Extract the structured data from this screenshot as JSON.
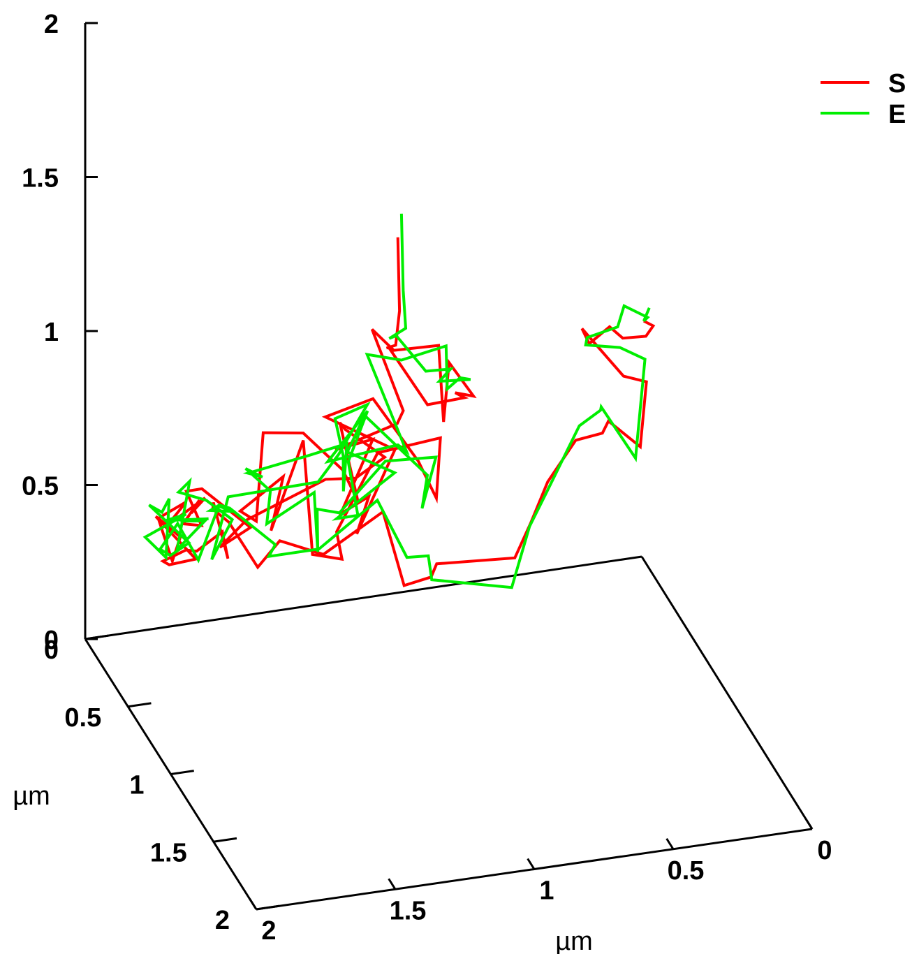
{
  "chart_data": {
    "type": "line",
    "title": "",
    "xlabel": "µm",
    "ylabel": "µm",
    "zlabel": "",
    "xlim": [
      0,
      2
    ],
    "ylim": [
      0,
      2
    ],
    "zlim": [
      0,
      2
    ],
    "x_ticks": [
      "0",
      "0.5",
      "1",
      "1.5",
      "2"
    ],
    "y_ticks": [
      "0",
      "0.5",
      "1",
      "1.5",
      "2"
    ],
    "z_ticks": [
      "0",
      "0.5",
      "1",
      "1.5",
      "2"
    ],
    "legend_position": "top-right",
    "grid": false,
    "series": [
      {
        "name": "S",
        "color": "#ff0000",
        "points": [
          [
            0.95,
            0.24,
            1.27
          ],
          [
            0.95,
            0.26,
            1.04
          ],
          [
            0.97,
            0.28,
            0.94
          ],
          [
            1.0,
            0.27,
            0.93
          ],
          [
            1.01,
            0.33,
            0.96
          ],
          [
            0.88,
            0.36,
            0.77
          ],
          [
            0.75,
            0.37,
            0.78
          ],
          [
            0.79,
            0.39,
            0.81
          ],
          [
            0.73,
            0.41,
            0.8
          ],
          [
            0.83,
            0.45,
            0.94
          ],
          [
            0.85,
            0.45,
            0.75
          ],
          [
            0.88,
            0.49,
            1.02
          ],
          [
            1.05,
            0.52,
            1.04
          ],
          [
            1.11,
            0.46,
            1.09
          ],
          [
            1.01,
            0.5,
            0.83
          ],
          [
            1.05,
            0.56,
            0.82
          ],
          [
            1.27,
            0.55,
            0.76
          ],
          [
            1.15,
            0.6,
            0.8
          ],
          [
            1.25,
            0.55,
            0.55
          ],
          [
            1.18,
            0.65,
            0.64
          ],
          [
            1.22,
            0.64,
            0.52
          ],
          [
            1.08,
            0.63,
            0.77
          ],
          [
            1.33,
            0.63,
            0.91
          ],
          [
            1.18,
            0.7,
            0.98
          ],
          [
            1.02,
            0.71,
            0.76
          ],
          [
            0.98,
            0.79,
            0.67
          ],
          [
            0.95,
            0.74,
            0.84
          ],
          [
            1.2,
            0.82,
            0.86
          ],
          [
            1.32,
            0.73,
            0.58
          ],
          [
            1.27,
            0.63,
            0.44
          ],
          [
            1.37,
            0.61,
            0.46
          ],
          [
            1.4,
            0.6,
            0.83
          ],
          [
            1.47,
            0.45,
            0.48
          ],
          [
            1.42,
            0.43,
            0.64
          ],
          [
            1.55,
            0.35,
            0.51
          ],
          [
            1.48,
            0.31,
            0.45
          ],
          [
            1.44,
            0.26,
            0.71
          ],
          [
            1.29,
            0.24,
            0.68
          ],
          [
            1.16,
            0.28,
            0.56
          ],
          [
            1.13,
            0.36,
            0.49
          ],
          [
            1.18,
            0.31,
            0.73
          ],
          [
            1.17,
            0.34,
            0.72
          ],
          [
            1.04,
            0.38,
            0.63
          ],
          [
            1.16,
            0.43,
            0.6
          ],
          [
            1.28,
            0.47,
            0.63
          ],
          [
            1.58,
            0.52,
            0.56
          ],
          [
            1.66,
            0.47,
            0.46
          ],
          [
            1.55,
            0.47,
            0.51
          ],
          [
            1.7,
            0.39,
            0.62
          ],
          [
            1.75,
            0.37,
            0.61
          ],
          [
            1.72,
            0.45,
            0.53
          ],
          [
            1.77,
            0.4,
            0.52
          ],
          [
            1.7,
            0.36,
            0.57
          ],
          [
            1.76,
            0.46,
            0.58
          ],
          [
            1.67,
            0.33,
            0.56
          ],
          [
            1.81,
            0.35,
            0.5
          ],
          [
            1.76,
            0.4,
            0.59
          ],
          [
            1.86,
            0.4,
            0.55
          ],
          [
            1.8,
            0.37,
            0.39
          ],
          [
            1.75,
            0.3,
            0.43
          ],
          [
            1.79,
            0.26,
            0.46
          ],
          [
            1.82,
            0.24,
            0.48
          ],
          [
            1.63,
            0.09,
            0.25
          ],
          [
            1.71,
            0.04,
            0.22
          ],
          [
            1.73,
            0.03,
            0.23
          ],
          [
            1.65,
            0.04,
            0.26
          ],
          [
            1.63,
            0.1,
            0.28
          ],
          [
            1.55,
            0.14,
            0.35
          ],
          [
            1.53,
            0.14,
            0.26
          ],
          [
            1.57,
            0.1,
            0.43
          ],
          [
            1.56,
            0.06,
            0.39
          ],
          [
            1.49,
            0.02,
            0.32
          ],
          [
            1.38,
            0.0,
            0.15
          ],
          [
            1.31,
            0.03,
            0.24
          ],
          [
            1.15,
            0.02,
            0.17
          ],
          [
            0.93,
            0.0,
            0.27
          ],
          [
            0.86,
            0.02,
            0.03
          ],
          [
            0.76,
            0.01,
            0.04
          ],
          [
            0.74,
            0.01,
            0.08
          ],
          [
            0.49,
            0.11,
            0.11
          ],
          [
            0.43,
            0.1,
            0.21
          ],
          [
            0.39,
            0.17,
            0.37
          ],
          [
            0.32,
            0.27,
            0.54
          ],
          [
            0.23,
            0.29,
            0.56
          ],
          [
            0.23,
            0.36,
            0.63
          ],
          [
            0.14,
            0.44,
            0.57
          ],
          [
            0.17,
            0.61,
            0.86
          ],
          [
            0.24,
            0.57,
            0.87
          ],
          [
            0.38,
            0.54,
            1.03
          ],
          [
            0.4,
            0.69,
            1.05
          ],
          [
            0.33,
            0.7,
            1.1
          ],
          [
            0.31,
            0.79,
            1.1
          ],
          [
            0.23,
            0.8,
            1.1
          ],
          [
            0.21,
            0.82,
            1.14
          ],
          [
            0.25,
            0.84,
            1.17
          ]
        ]
      },
      {
        "name": "E",
        "color": "#00ee00",
        "points": [
          [
            0.94,
            0.25,
            1.35
          ],
          [
            0.94,
            0.27,
            1.11
          ],
          [
            0.94,
            0.3,
            1.0
          ],
          [
            0.99,
            0.27,
            0.96
          ],
          [
            0.98,
            0.32,
            0.99
          ],
          [
            0.88,
            0.34,
            0.87
          ],
          [
            0.8,
            0.37,
            0.88
          ],
          [
            0.85,
            0.4,
            0.86
          ],
          [
            0.75,
            0.44,
            0.87
          ],
          [
            0.8,
            0.48,
            0.9
          ],
          [
            0.84,
            0.46,
            0.86
          ],
          [
            0.85,
            0.48,
            1.01
          ],
          [
            1.02,
            0.51,
            1.0
          ],
          [
            1.14,
            0.5,
            1.03
          ],
          [
            1.02,
            0.57,
            0.73
          ],
          [
            1.06,
            0.6,
            0.77
          ],
          [
            1.3,
            0.56,
            0.73
          ],
          [
            1.16,
            0.57,
            0.88
          ],
          [
            1.22,
            0.54,
            0.71
          ],
          [
            1.21,
            0.62,
            0.57
          ],
          [
            1.28,
            0.6,
            0.56
          ],
          [
            1.09,
            0.66,
            0.71
          ],
          [
            1.26,
            0.66,
            0.8
          ],
          [
            1.21,
            0.7,
            0.93
          ],
          [
            1.0,
            0.75,
            0.73
          ],
          [
            1.01,
            0.72,
            0.61
          ],
          [
            0.96,
            0.72,
            0.77
          ],
          [
            1.16,
            0.78,
            0.81
          ],
          [
            1.31,
            0.73,
            0.64
          ],
          [
            1.35,
            0.6,
            0.6
          ],
          [
            1.36,
            0.64,
            0.48
          ],
          [
            1.37,
            0.63,
            0.67
          ],
          [
            1.47,
            0.4,
            0.48
          ],
          [
            1.46,
            0.41,
            0.59
          ],
          [
            1.54,
            0.38,
            0.66
          ],
          [
            1.47,
            0.35,
            0.61
          ],
          [
            1.51,
            0.31,
            0.61
          ],
          [
            1.26,
            0.21,
            0.59
          ],
          [
            1.13,
            0.23,
            0.62
          ],
          [
            1.17,
            0.32,
            0.51
          ],
          [
            1.18,
            0.35,
            0.64
          ],
          [
            1.2,
            0.32,
            0.75
          ],
          [
            1.09,
            0.34,
            0.79
          ],
          [
            1.23,
            0.46,
            0.7
          ],
          [
            1.31,
            0.48,
            0.63
          ],
          [
            1.63,
            0.47,
            0.62
          ],
          [
            1.68,
            0.44,
            0.41
          ],
          [
            1.6,
            0.42,
            0.52
          ],
          [
            1.69,
            0.41,
            0.59
          ],
          [
            1.79,
            0.41,
            0.63
          ],
          [
            1.75,
            0.41,
            0.66
          ],
          [
            1.78,
            0.36,
            0.42
          ],
          [
            1.68,
            0.36,
            0.5
          ],
          [
            1.78,
            0.4,
            0.53
          ],
          [
            1.67,
            0.37,
            0.51
          ],
          [
            1.82,
            0.36,
            0.52
          ],
          [
            1.76,
            0.4,
            0.55
          ],
          [
            1.91,
            0.41,
            0.5
          ],
          [
            1.82,
            0.36,
            0.4
          ],
          [
            1.79,
            0.3,
            0.56
          ],
          [
            1.81,
            0.28,
            0.51
          ],
          [
            1.85,
            0.26,
            0.53
          ],
          [
            1.67,
            0.14,
            0.33
          ],
          [
            1.7,
            0.02,
            0.24
          ],
          [
            1.74,
            0.03,
            0.27
          ],
          [
            1.68,
            0.04,
            0.35
          ],
          [
            1.63,
            0.12,
            0.26
          ],
          [
            1.56,
            0.13,
            0.43
          ],
          [
            1.5,
            0.12,
            0.4
          ],
          [
            1.59,
            0.13,
            0.42
          ],
          [
            1.53,
            0.04,
            0.39
          ],
          [
            1.49,
            0.03,
            0.37
          ],
          [
            1.32,
            0.01,
            0.22
          ],
          [
            1.34,
            0.0,
            0.18
          ],
          [
            1.16,
            0.0,
            0.18
          ],
          [
            0.95,
            0.0,
            0.31
          ],
          [
            0.85,
            0.02,
            0.12
          ],
          [
            0.77,
            0.01,
            0.11
          ],
          [
            0.77,
            0.05,
            0.05
          ],
          [
            0.51,
            0.14,
            0.03
          ],
          [
            0.44,
            0.12,
            0.21
          ],
          [
            0.41,
            0.22,
            0.36
          ],
          [
            0.31,
            0.28,
            0.59
          ],
          [
            0.24,
            0.3,
            0.64
          ],
          [
            0.25,
            0.34,
            0.67
          ],
          [
            0.16,
            0.45,
            0.54
          ],
          [
            0.16,
            0.56,
            0.91
          ],
          [
            0.25,
            0.56,
            0.96
          ],
          [
            0.37,
            0.55,
            0.98
          ],
          [
            0.42,
            0.73,
            1.09
          ],
          [
            0.31,
            0.73,
            1.11
          ],
          [
            0.29,
            0.74,
            1.18
          ],
          [
            0.23,
            0.82,
            1.17
          ],
          [
            0.25,
            0.84,
            1.17
          ],
          [
            0.23,
            0.84,
            1.21
          ]
        ]
      }
    ]
  }
}
